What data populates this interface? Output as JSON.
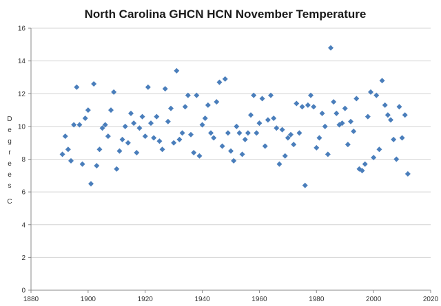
{
  "chart_data": {
    "type": "scatter",
    "title": "North Carolina GHCN HCN November Temperature",
    "xlabel": "",
    "ylabel": "Degrees C",
    "xlim": [
      1880,
      2020
    ],
    "ylim": [
      0,
      16
    ],
    "x_ticks": [
      1880,
      1900,
      1920,
      1940,
      1960,
      1980,
      2000,
      2020
    ],
    "y_ticks": [
      0,
      2,
      4,
      6,
      8,
      10,
      12,
      14,
      16
    ],
    "grid": "horizontal",
    "legend": "none",
    "marker": "diamond",
    "marker_color": "#4a7ebb",
    "series": [
      {
        "x": [
          1891,
          1892,
          1893,
          1894,
          1895,
          1896,
          1897,
          1898,
          1899,
          1900,
          1901,
          1902,
          1903,
          1904,
          1905,
          1906,
          1907,
          1908,
          1909,
          1910,
          1911,
          1912,
          1913,
          1914,
          1915,
          1916,
          1917,
          1918,
          1919,
          1920,
          1921,
          1922,
          1923,
          1924,
          1925,
          1926,
          1927,
          1928,
          1929,
          1930,
          1931,
          1932,
          1933,
          1934,
          1935,
          1936,
          1937,
          1938,
          1939,
          1940,
          1941,
          1942,
          1943,
          1944,
          1945,
          1946,
          1947,
          1948,
          1949,
          1950,
          1951,
          1952,
          1953,
          1954,
          1955,
          1956,
          1957,
          1958,
          1959,
          1960,
          1961,
          1962,
          1963,
          1964,
          1965,
          1966,
          1967,
          1968,
          1969,
          1970,
          1971,
          1972,
          1973,
          1974,
          1975,
          1976,
          1977,
          1978,
          1979,
          1980,
          1981,
          1982,
          1983,
          1984,
          1985,
          1986,
          1987,
          1988,
          1989,
          1990,
          1991,
          1992,
          1993,
          1994,
          1995,
          1996,
          1997,
          1998,
          1999,
          2000,
          2001,
          2002,
          2003,
          2004,
          2005,
          2006,
          2007,
          2008,
          2009,
          2010,
          2011,
          2012
        ],
        "y": [
          8.3,
          9.4,
          8.6,
          7.9,
          10.1,
          12.4,
          10.1,
          7.7,
          10.5,
          11.0,
          6.5,
          12.6,
          7.6,
          8.6,
          9.9,
          10.1,
          9.4,
          11.0,
          12.1,
          7.4,
          8.5,
          9.2,
          10.0,
          9.0,
          10.8,
          10.2,
          8.4,
          9.9,
          10.6,
          9.4,
          12.4,
          10.2,
          9.3,
          10.6,
          9.1,
          8.6,
          12.3,
          10.3,
          11.1,
          9.0,
          13.4,
          9.2,
          9.6,
          11.2,
          11.9,
          9.5,
          8.4,
          11.9,
          8.2,
          10.1,
          10.5,
          11.3,
          9.6,
          9.3,
          11.5,
          12.7,
          8.8,
          12.9,
          9.6,
          8.5,
          7.9,
          10.0,
          9.6,
          8.3,
          9.2,
          9.6,
          10.7,
          11.9,
          9.6,
          10.2,
          11.7,
          8.8,
          10.4,
          11.9,
          10.5,
          9.9,
          7.7,
          9.8,
          8.2,
          9.3,
          9.5,
          8.9,
          11.4,
          9.6,
          11.2,
          6.4,
          11.3,
          11.9,
          11.2,
          8.7,
          9.3,
          10.8,
          10.0,
          8.3,
          14.8,
          11.5,
          10.8,
          10.1,
          10.2,
          11.1,
          8.9,
          10.3,
          9.7,
          11.7,
          7.4,
          7.3,
          7.7,
          10.6,
          12.1,
          8.1,
          11.9,
          8.6,
          12.8,
          11.3,
          10.7,
          10.4,
          9.2,
          8.0,
          11.2,
          9.3,
          10.7,
          7.1
        ]
      }
    ]
  }
}
